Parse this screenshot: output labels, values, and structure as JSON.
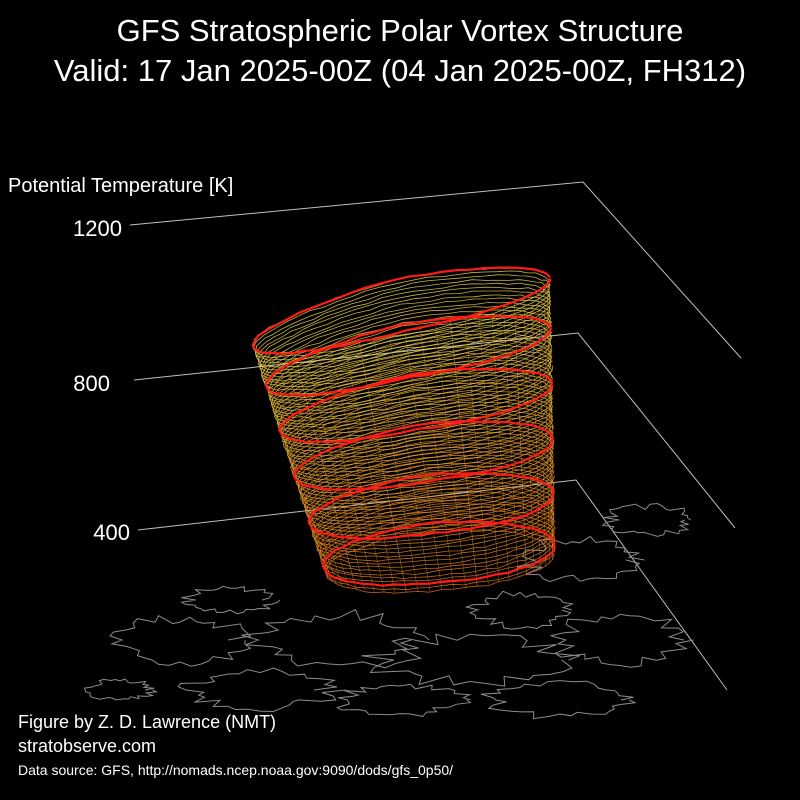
{
  "title": {
    "line1": "GFS Stratospheric Polar Vortex Structure",
    "line2": "Valid: 17 Jan 2025-00Z  (04 Jan 2025-00Z, FH312)"
  },
  "axis": {
    "label": "Potential Temperature [K]",
    "ticks": [
      "1200",
      "800",
      "400"
    ]
  },
  "credits": {
    "author": "Figure by Z. D. Lawrence (NMT)",
    "site": "stratobserve.com",
    "source": "Data source: GFS, http://nomads.ncep.noaa.gov:9090/dods/gfs_0p50/"
  },
  "colors": {
    "background": "#000000",
    "text": "#ffffff",
    "grid": "#bfbfbf",
    "coastline": "#8c8c8c",
    "highlight_contour": "#ff1a1a",
    "contour_low": "#e07010",
    "contour_high": "#e8d84a"
  }
}
